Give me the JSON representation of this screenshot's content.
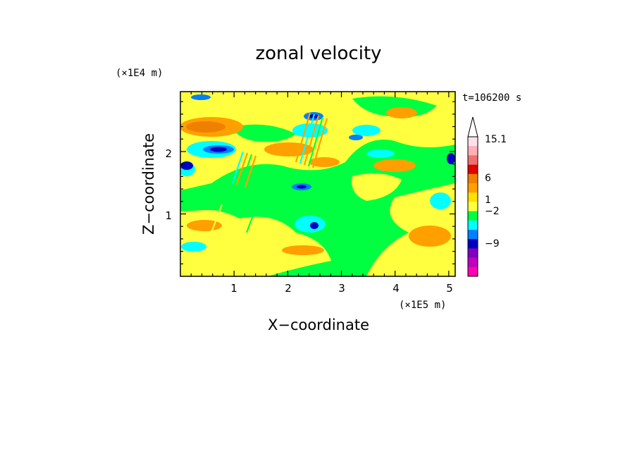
{
  "chart_data": {
    "type": "heatmap",
    "title": "zonal velocity",
    "xlabel": "X−coordinate",
    "ylabel": "Z−coordinate",
    "x_multiplier": "(×1E5 m)",
    "y_multiplier": "(×1E4 m)",
    "time_label": "t=106200 s",
    "xlim": [
      0,
      5.12
    ],
    "ylim": [
      0,
      2.96
    ],
    "x_ticks": [
      1,
      2,
      3,
      4,
      5
    ],
    "y_ticks": [
      1,
      2
    ],
    "x_tick_labels": [
      "1",
      "2",
      "3",
      "4",
      "5"
    ],
    "y_tick_labels": [
      "1",
      "2"
    ],
    "colorbar": {
      "levels_labeled": [
        "15.1",
        "6",
        "1",
        "−2",
        "−9"
      ],
      "colors_top_to_bottom": [
        "#ffe0e8",
        "#ffb0b8",
        "#f07070",
        "#e00000",
        "#f08000",
        "#ffa000",
        "#ffe000",
        "#ffff40",
        "#00ff40",
        "#00ffff",
        "#0080ff",
        "#0000c0",
        "#8000c0",
        "#c000c0",
        "#ff00b0"
      ],
      "extend_max": true
    },
    "contour_color_map": {
      "neg12": "#ff00b0",
      "neg9": "#c000c0",
      "neg6": "#0000c0",
      "neg3": "#0080ff",
      "neg1": "#00ffff",
      "zero": "#00ff40",
      "pos1": "#ffff40",
      "pos2": "#ffe000",
      "pos3": "#ffa000",
      "pos5": "#f08000",
      "pos7": "#e00000"
    }
  }
}
